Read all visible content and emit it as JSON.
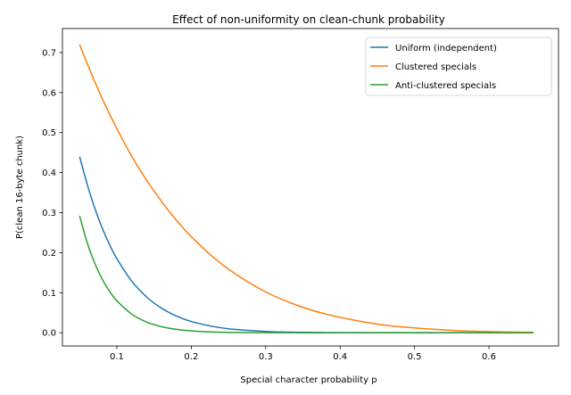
{
  "chart_data": {
    "type": "line",
    "title": "Effect of non-uniformity on clean-chunk probability",
    "xlabel": "Special character probability p",
    "ylabel": "P(clean 16-byte chunk)",
    "xlim": [
      0.0269,
      0.6935
    ],
    "ylim": [
      -0.033,
      0.76
    ],
    "xticks": [
      0.1,
      0.2,
      0.3,
      0.4,
      0.5,
      0.6
    ],
    "xtick_labels": [
      "0.1",
      "0.2",
      "0.3",
      "0.4",
      "0.5",
      "0.6"
    ],
    "yticks": [
      0.0,
      0.1,
      0.2,
      0.3,
      0.4,
      0.5,
      0.6,
      0.7
    ],
    "ytick_labels": [
      "0.0",
      "0.1",
      "0.2",
      "0.3",
      "0.4",
      "0.5",
      "0.6",
      "0.7"
    ],
    "grid": false,
    "legend_position": "top-right",
    "x": [
      0.05,
      0.06,
      0.07,
      0.08,
      0.09,
      0.1,
      0.12,
      0.14,
      0.16,
      0.18,
      0.2,
      0.23,
      0.26,
      0.3,
      0.34,
      0.38,
      0.42,
      0.46,
      0.5,
      0.55,
      0.6,
      0.66
    ],
    "series": [
      {
        "name": "Uniform (independent)",
        "color": "#1f77b4",
        "values": [
          0.44,
          0.372,
          0.313,
          0.263,
          0.221,
          0.185,
          0.129,
          0.0895,
          0.0614,
          0.0418,
          0.0281,
          0.0153,
          0.0081,
          0.0033,
          0.0013,
          0.0005,
          0.0002,
          0.0001,
          0,
          0,
          0,
          0
        ]
      },
      {
        "name": "Clustered specials",
        "color": "#ff7f0e",
        "values": [
          0.72,
          0.673,
          0.629,
          0.586,
          0.547,
          0.51,
          0.441,
          0.381,
          0.328,
          0.281,
          0.24,
          0.188,
          0.146,
          0.102,
          0.07,
          0.047,
          0.031,
          0.019,
          0.012,
          0.006,
          0.0028,
          0.001
        ]
      },
      {
        "name": "Anti-clustered specials",
        "color": "#2ca02c",
        "values": [
          0.292,
          0.226,
          0.175,
          0.135,
          0.104,
          0.08,
          0.0465,
          0.0268,
          0.0152,
          0.0085,
          0.0047,
          0.0019,
          0.0007,
          0.0002,
          0,
          0,
          0,
          0,
          0,
          0,
          0,
          0
        ]
      }
    ]
  }
}
